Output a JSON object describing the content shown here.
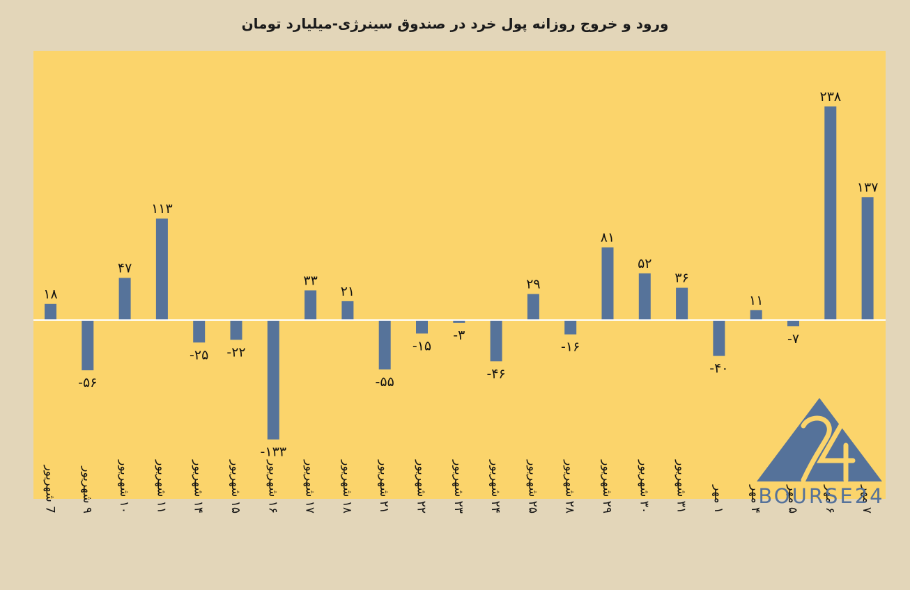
{
  "chart_data": {
    "type": "bar",
    "title": "ورود و خروج روزانه پول خرد در صندوق سینرژی-میلیارد تومان",
    "xlabel": "",
    "ylabel": "",
    "categories": [
      "7 شهریور",
      "۹ شهریور",
      "۱۰ شهریور",
      "۱۱ شهریور",
      "۱۴ شهریور",
      "۱۵ شهریور",
      "۱۶ شهریور",
      "۱۷ شهریور",
      "۱۸ شهریور",
      "۲۱ شهریور",
      "۲۲ شهریور",
      "۲۳ شهریور",
      "۲۴ شهریور",
      "۲۵ شهریور",
      "۲۸ شهریور",
      "۲۹ شهریور",
      "۳۰ شهریور",
      "۳۱ شهریور",
      "۱ مهر",
      "۴ مهر",
      "۵ مهر",
      "۶ مهر",
      "۷ مهر"
    ],
    "values": [
      18,
      -56,
      47,
      113,
      -25,
      -22,
      -133,
      33,
      21,
      -55,
      -15,
      -3,
      -46,
      29,
      -16,
      81,
      52,
      36,
      -40,
      11,
      -7,
      238,
      137
    ],
    "value_labels": [
      "۱۸",
      "-۵۶",
      "۴۷",
      "۱۱۳",
      "-۲۵",
      "-۲۲",
      "-۱۳۳",
      "۳۳",
      "۲۱",
      "-۵۵",
      "-۱۵",
      "-۳",
      "-۴۶",
      "۲۹",
      "-۱۶",
      "۸۱",
      "۵۲",
      "۳۶",
      "-۴۰",
      "۱۱",
      "-۷",
      "۲۳۸",
      "۱۳۷"
    ],
    "ylim": [
      -200,
      300
    ],
    "grid": false,
    "legend": "none",
    "colors": {
      "bar": "#56739a",
      "plot_bg": "#fbd46b",
      "page_bg": "#e3d6b9",
      "zero_line": "#ffffff",
      "logo": "#55729a"
    }
  },
  "logo": {
    "mark": "24",
    "text": "BOURSE24",
    "icon": "triangle-logo-icon"
  }
}
